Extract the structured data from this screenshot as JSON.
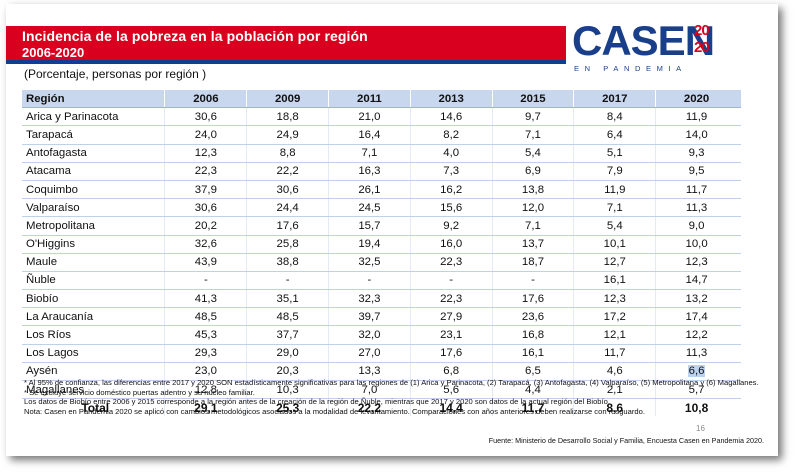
{
  "header": {
    "title": "Incidencia de la pobreza en la población por región",
    "years_range": "2006-2020",
    "subtitle": "(Porcentaje, personas por región )"
  },
  "logo": {
    "word": "CASEN",
    "year_line1": "20",
    "year_line2": "20",
    "tagline": "EN PANDEMIA"
  },
  "table": {
    "columns": [
      "Región",
      "2006",
      "2009",
      "2011",
      "2013",
      "2015",
      "2017",
      "2020"
    ],
    "rows": [
      {
        "region": "Arica y Parinacota",
        "values": [
          "30,6",
          "18,8",
          "21,0",
          "14,6",
          "9,7",
          "8,4",
          "11,9"
        ]
      },
      {
        "region": "Tarapacá",
        "values": [
          "24,0",
          "24,9",
          "16,4",
          "8,2",
          "7,1",
          "6,4",
          "14,0"
        ]
      },
      {
        "region": "Antofagasta",
        "values": [
          "12,3",
          "8,8",
          "7,1",
          "4,0",
          "5,4",
          "5,1",
          "9,3"
        ]
      },
      {
        "region": "Atacama",
        "values": [
          "22,3",
          "22,2",
          "16,3",
          "7,3",
          "6,9",
          "7,9",
          "9,5"
        ]
      },
      {
        "region": "Coquimbo",
        "values": [
          "37,9",
          "30,6",
          "26,1",
          "16,2",
          "13,8",
          "11,9",
          "11,7"
        ]
      },
      {
        "region": "Valparaíso",
        "values": [
          "30,6",
          "24,4",
          "24,5",
          "15,6",
          "12,0",
          "7,1",
          "11,3"
        ]
      },
      {
        "region": "Metropolitana",
        "values": [
          "20,2",
          "17,6",
          "15,7",
          "9,2",
          "7,1",
          "5,4",
          "9,0"
        ]
      },
      {
        "region": "O'Higgins",
        "values": [
          "32,6",
          "25,8",
          "19,4",
          "16,0",
          "13,7",
          "10,1",
          "10,0"
        ]
      },
      {
        "region": "Maule",
        "values": [
          "43,9",
          "38,8",
          "32,5",
          "22,3",
          "18,7",
          "12,7",
          "12,3"
        ]
      },
      {
        "region": "Ñuble",
        "values": [
          "-",
          "-",
          "-",
          "-",
          "-",
          "16,1",
          "14,7"
        ]
      },
      {
        "region": "Biobío",
        "values": [
          "41,3",
          "35,1",
          "32,3",
          "22,3",
          "17,6",
          "12,3",
          "13,2"
        ]
      },
      {
        "region": "La Araucanía",
        "values": [
          "48,5",
          "48,5",
          "39,7",
          "27,9",
          "23,6",
          "17,2",
          "17,4"
        ]
      },
      {
        "region": "Los Ríos",
        "values": [
          "45,3",
          "37,7",
          "32,0",
          "23,1",
          "16,8",
          "12,1",
          "12,2"
        ]
      },
      {
        "region": "Los Lagos",
        "values": [
          "29,3",
          "29,0",
          "27,0",
          "17,6",
          "16,1",
          "11,7",
          "11,3"
        ]
      },
      {
        "region": "Aysén",
        "values": [
          "23,0",
          "20,3",
          "13,3",
          "6,8",
          "6,5",
          "4,6",
          "6,6"
        ]
      },
      {
        "region": "Magallanes",
        "values": [
          "12,8",
          "10,3",
          "7,0",
          "5,6",
          "4,4",
          "2,1",
          "5,7"
        ]
      }
    ],
    "total": {
      "label": "Total",
      "values": [
        "29,1",
        "25,3",
        "22,2",
        "14,4",
        "11,7",
        "8,6",
        "10,8"
      ]
    }
  },
  "notes": {
    "line1": "* Al 95% de confianza, las diferencias entre 2017 y 2020 SON estadísticamente significativas para las regiones de (1) Arica y Parinacota, (2) Tarapacá, (3) Antofagasta, (4) Valparaíso, (5) Metropolitana y (6) Magallanes.",
    "line2": "* Se excluye servicio doméstico puertas adentro y su núcleo familiar.",
    "line3": "Los datos de Biobío entre 2006 y 2015 corresponde a la región antes de la creación de la región de Ñuble, mientras que 2017 y 2020 son datos de la actual región del Biobío.",
    "line4": "Nota: Casen en Pandemia 2020 se aplicó con cambios metodológicos asociados a la modalidad de levantamiento. Comparaciones con años anteriores deben realizarse con resguardo."
  },
  "page_number": "16",
  "source": "Fuente: Ministerio de Desarrollo Social y Familia, Encuesta Casen en Pandemia 2020.",
  "colors": {
    "brand_red": "#d9001f",
    "brand_blue": "#0f3e93",
    "header_fill": "#c9d7ee",
    "highlight": "#bcd3f0"
  }
}
